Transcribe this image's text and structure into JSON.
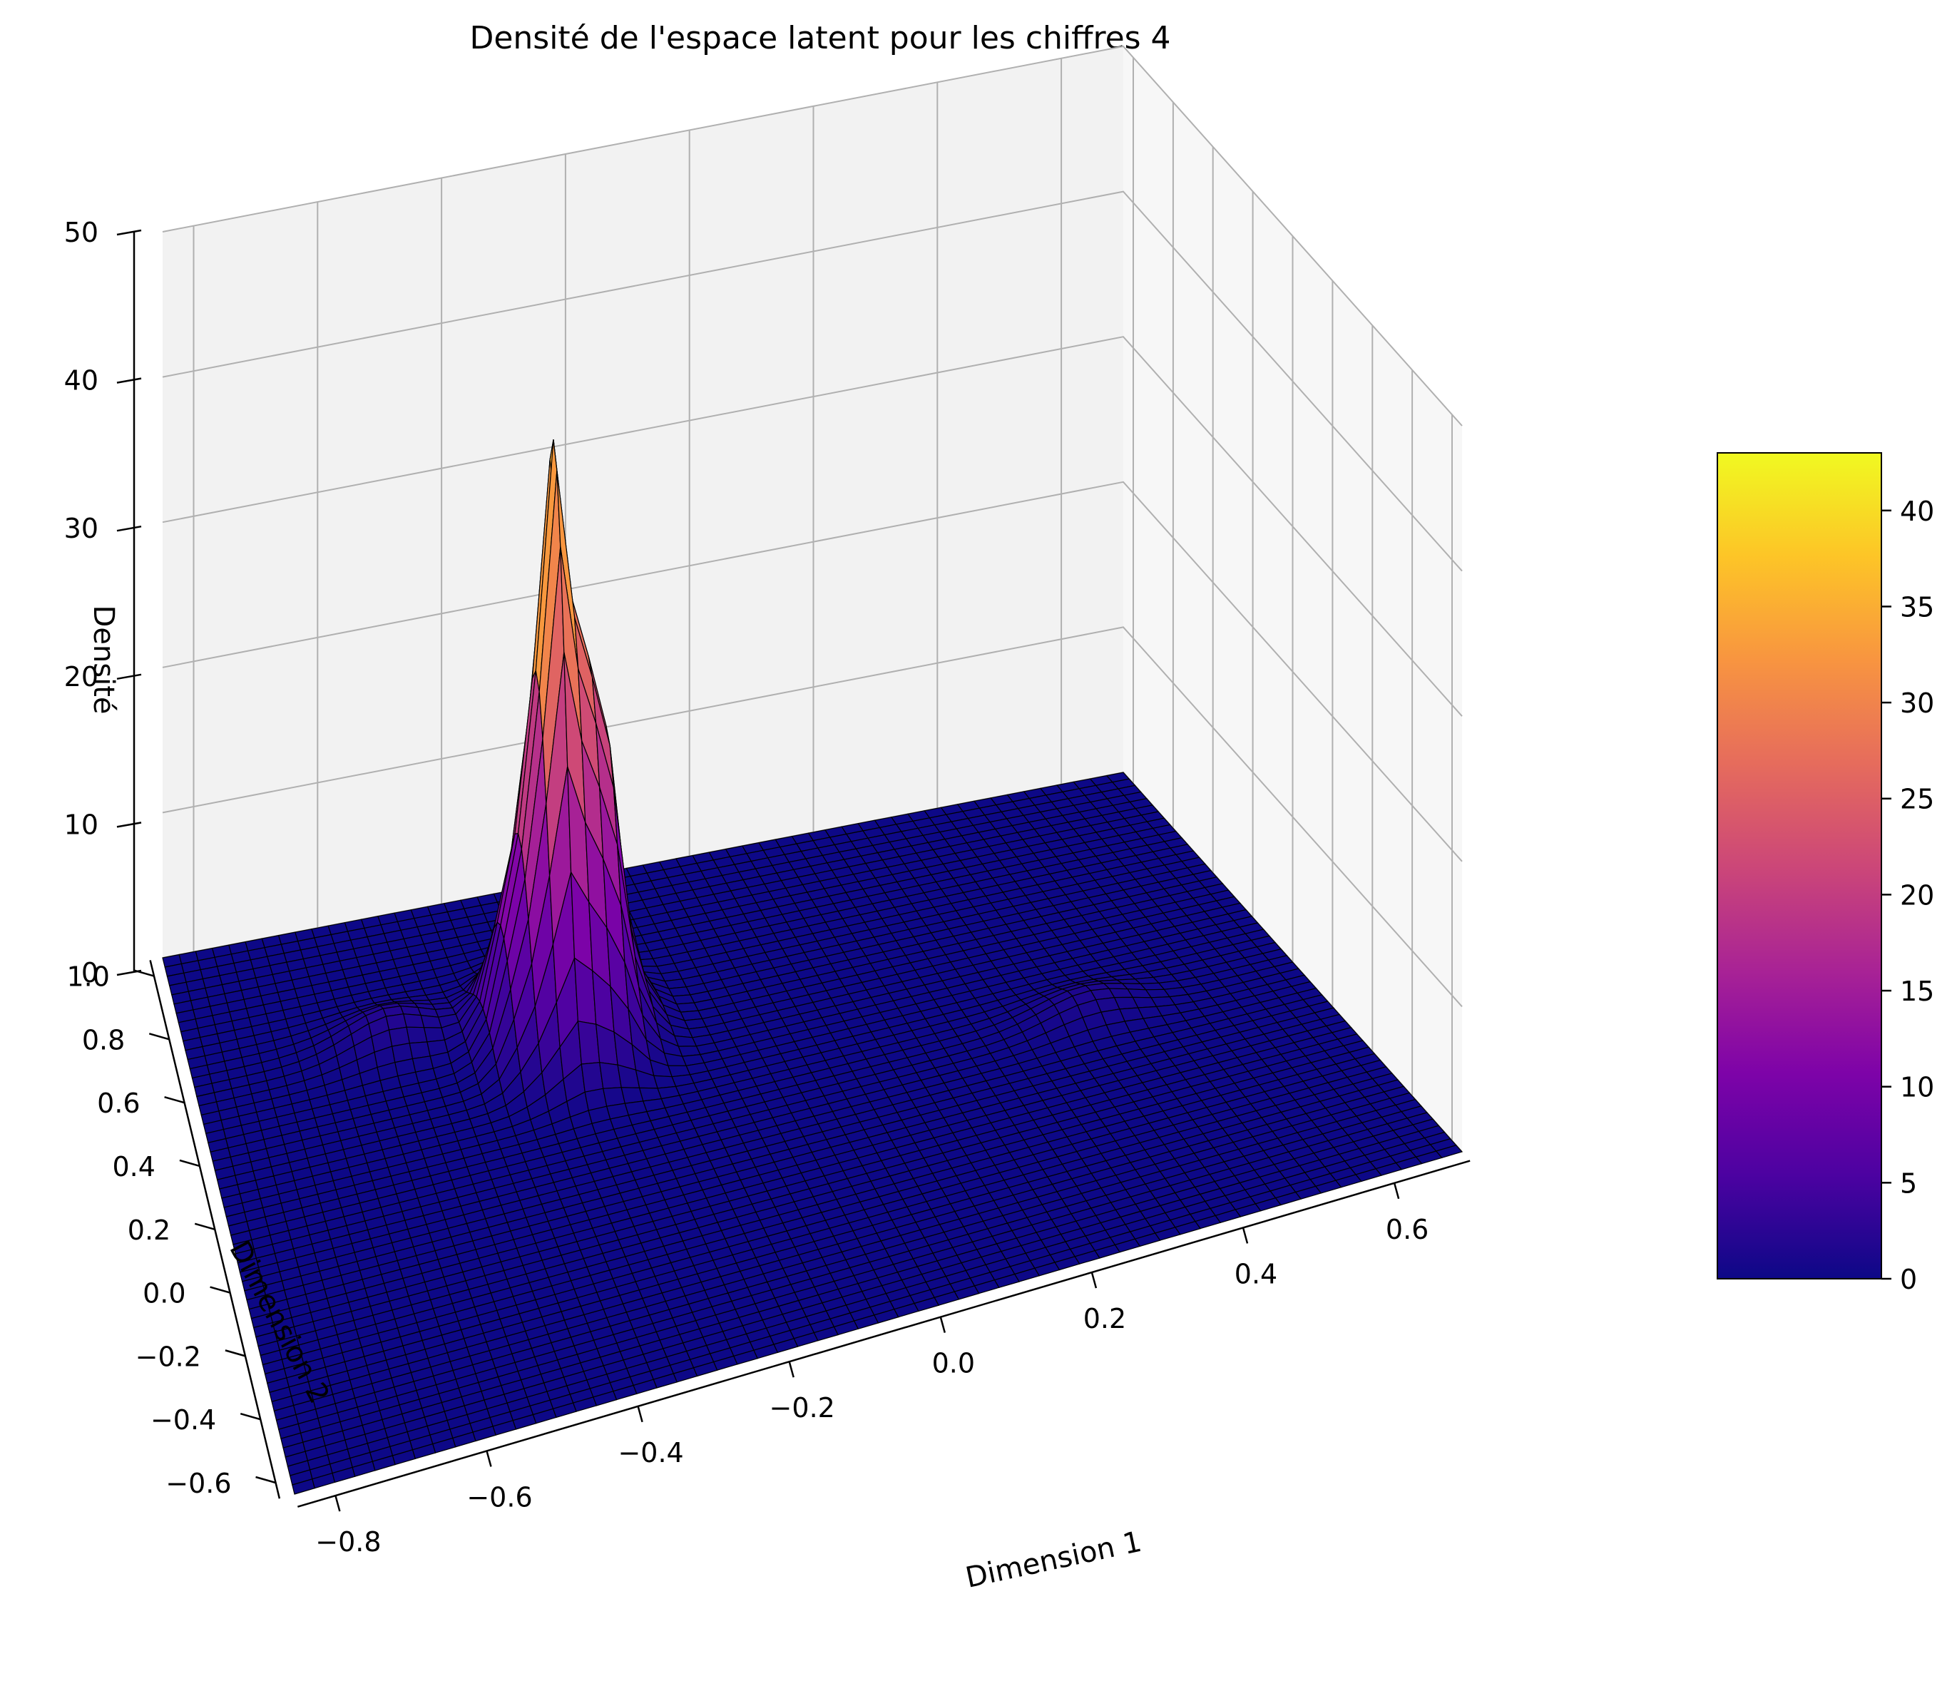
{
  "chart_data": {
    "type": "surface",
    "title": "Densité de l'espace latent pour les chiffres 4",
    "xlabel": "Dimension 1",
    "ylabel": "Dimension 2",
    "zlabel": "Densité",
    "colormap": "plasma",
    "colorbar": {
      "range": [
        0,
        43
      ],
      "ticks": [
        0,
        5,
        10,
        15,
        20,
        25,
        30,
        35,
        40
      ],
      "tick_labels": [
        "0",
        "5",
        "10",
        "15",
        "20",
        "25",
        "30",
        "35",
        "40"
      ]
    },
    "xlim": [
      -0.85,
      0.7
    ],
    "ylim": [
      -0.65,
      1.05
    ],
    "zlim": [
      0,
      50
    ],
    "x_ticks": [
      -0.8,
      -0.6,
      -0.4,
      -0.2,
      0.0,
      0.2,
      0.4,
      0.6
    ],
    "x_tick_labels": [
      "−0.8",
      "−0.6",
      "−0.4",
      "−0.2",
      "0.0",
      "0.2",
      "0.4",
      "0.6"
    ],
    "y_ticks": [
      -0.6,
      -0.4,
      -0.2,
      0.0,
      0.2,
      0.4,
      0.6,
      0.8,
      1.0
    ],
    "y_tick_labels": [
      "−0.6",
      "−0.4",
      "−0.2",
      "0.0",
      "0.2",
      "0.4",
      "0.6",
      "0.8",
      "1.0"
    ],
    "z_ticks": [
      0,
      10,
      20,
      30,
      40,
      50
    ],
    "z_tick_labels": [
      "0",
      "10",
      "20",
      "30",
      "40",
      "50"
    ],
    "grid": true,
    "peak": {
      "x": -0.3,
      "y": 0.55,
      "z": 43
    },
    "secondary_bumps": [
      {
        "x": -0.55,
        "y": 0.65,
        "z": 2
      },
      {
        "x": 0.4,
        "y": 0.2,
        "z": 1.5
      }
    ]
  }
}
